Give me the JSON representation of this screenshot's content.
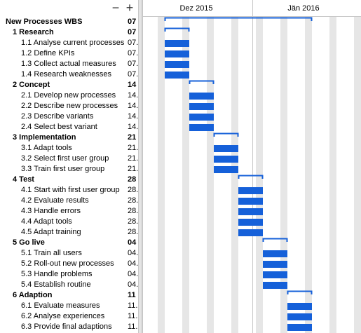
{
  "toolbar": {
    "collapse_symbol": "−",
    "expand_symbol": "+"
  },
  "timeline": {
    "months": [
      "Dez 2015",
      "Jän 2016"
    ]
  },
  "colors": {
    "bar": "#1560d9",
    "weekend": "#e6e6e6",
    "grid": "#c8c8c8"
  },
  "tasks": [
    {
      "name": "New Processes WBS",
      "start": "07",
      "level": 0,
      "summary": true
    },
    {
      "name": "1 Research",
      "start": "07",
      "level": 1,
      "summary": true
    },
    {
      "name": "1.1 Analyse current processes",
      "start": "07.",
      "level": 2
    },
    {
      "name": "1.2 Define KPIs",
      "start": "07.",
      "level": 2
    },
    {
      "name": "1.3 Collect actual measures",
      "start": "07.",
      "level": 2
    },
    {
      "name": "1.4 Research weaknesses",
      "start": "07.",
      "level": 2
    },
    {
      "name": "2 Concept",
      "start": "14",
      "level": 1,
      "summary": true
    },
    {
      "name": "2.1 Develop new processes",
      "start": "14.",
      "level": 2
    },
    {
      "name": "2.2 Describe new processes",
      "start": "14.",
      "level": 2
    },
    {
      "name": "2.3 Describe variants",
      "start": "14.",
      "level": 2
    },
    {
      "name": "2.4 Select best variant",
      "start": "14.",
      "level": 2
    },
    {
      "name": "3 Implementation",
      "start": "21",
      "level": 1,
      "summary": true
    },
    {
      "name": "3.1 Adapt tools",
      "start": "21.",
      "level": 2
    },
    {
      "name": "3.2 Select first user group",
      "start": "21.",
      "level": 2
    },
    {
      "name": "3.3 Train first user group",
      "start": "21.",
      "level": 2
    },
    {
      "name": "4 Test",
      "start": "28",
      "level": 1,
      "summary": true
    },
    {
      "name": "4.1 Start with first user group",
      "start": "28.",
      "level": 2
    },
    {
      "name": "4.2 Evaluate results",
      "start": "28.",
      "level": 2
    },
    {
      "name": "4.3 Handle errors",
      "start": "28.",
      "level": 2
    },
    {
      "name": "4.4 Adapt tools",
      "start": "28.",
      "level": 2
    },
    {
      "name": "4.5 Adapt training",
      "start": "28.",
      "level": 2
    },
    {
      "name": "5 Go live",
      "start": "04",
      "level": 1,
      "summary": true
    },
    {
      "name": "5.1 Train all users",
      "start": "04.",
      "level": 2
    },
    {
      "name": "5.2 Roll-out new processes",
      "start": "04.",
      "level": 2
    },
    {
      "name": "5.3 Handle problems",
      "start": "04.",
      "level": 2
    },
    {
      "name": "5.4 Establish routine",
      "start": "04.",
      "level": 2
    },
    {
      "name": "6 Adaption",
      "start": "11",
      "level": 1,
      "summary": true
    },
    {
      "name": "6.1 Evaluate measures",
      "start": "11.",
      "level": 2
    },
    {
      "name": "6.2 Analyse  experiences",
      "start": "11.",
      "level": 2
    },
    {
      "name": "6.3 Provide final adaptions",
      "start": "11.",
      "level": 2
    }
  ]
}
